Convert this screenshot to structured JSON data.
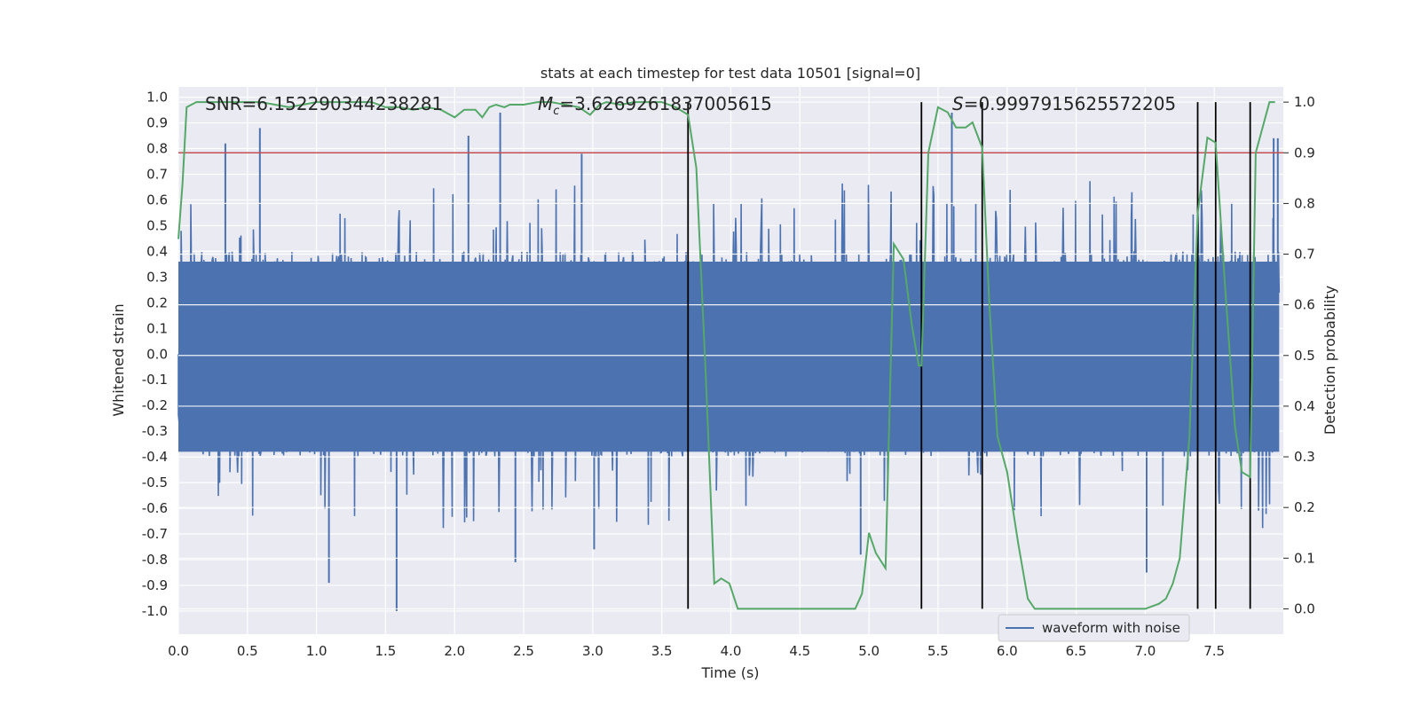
{
  "chart_data": {
    "type": "line",
    "title": "stats at each timestep for test data 10501 [signal=0]",
    "xlabel": "Time (s)",
    "ylabel_left": "Whitened strain",
    "ylabel_right": "Detection probability",
    "xlim": [
      0.0,
      8.0
    ],
    "ylim_left": [
      -1.09,
      1.04
    ],
    "ylim_right": [
      -0.05,
      1.03
    ],
    "x_ticks": [
      "0.0",
      "0.5",
      "1.0",
      "1.5",
      "2.0",
      "2.5",
      "3.0",
      "3.5",
      "4.0",
      "4.5",
      "5.0",
      "5.5",
      "6.0",
      "6.5",
      "7.0",
      "7.5"
    ],
    "y_ticks_left": [
      "1.0",
      "0.9",
      "0.8",
      "0.7",
      "0.6",
      "0.5",
      "0.4",
      "0.3",
      "0.2",
      "0.1",
      "0.0",
      "-0.1",
      "-0.2",
      "-0.3",
      "-0.4",
      "-0.5",
      "-0.6",
      "-0.7",
      "-0.8",
      "-0.9",
      "-1.0"
    ],
    "y_ticks_right": [
      "1.0",
      "0.9",
      "0.8",
      "0.7",
      "0.6",
      "0.5",
      "0.4",
      "0.3",
      "0.2",
      "0.1",
      "0.0"
    ],
    "annotations": {
      "snr": "SNR=6.152290344238281",
      "mc_symbol": "M",
      "mc_sub": "c",
      "mc_value": "=3.6269261837005615",
      "s_symbol": "S",
      "s_value": "=0.9997915625572205"
    },
    "legend": {
      "label": "waveform with noise",
      "position": "lower-right"
    },
    "grid": true,
    "colors": {
      "background": "#eaeaf2",
      "grid": "#ffffff",
      "waveform": "#4c72b0",
      "probability": "#55a868",
      "threshold": "#c44e52",
      "markers": "#000000"
    },
    "threshold_probability": 0.9,
    "vertical_markers_s": [
      3.69,
      5.38,
      5.82,
      7.38,
      7.51,
      7.76
    ],
    "waveform_envelope": {
      "typical_amplitude": 0.4,
      "positive_peaks": [
        {
          "x": 0.34,
          "y": 0.82
        },
        {
          "x": 0.59,
          "y": 0.88
        },
        {
          "x": 2.1,
          "y": 0.85
        },
        {
          "x": 2.33,
          "y": 0.94
        },
        {
          "x": 2.92,
          "y": 0.78
        },
        {
          "x": 5.6,
          "y": 0.94
        },
        {
          "x": 7.93,
          "y": 0.84
        },
        {
          "x": 7.96,
          "y": 0.84
        }
      ],
      "negative_peaks": [
        {
          "x": 1.09,
          "y": -0.89
        },
        {
          "x": 1.58,
          "y": -1.0
        },
        {
          "x": 2.44,
          "y": -0.81
        },
        {
          "x": 7.01,
          "y": -0.85
        },
        {
          "x": 4.94,
          "y": -0.78
        },
        {
          "x": 3.01,
          "y": -0.76
        }
      ]
    },
    "series": [
      {
        "name": "waveform with noise",
        "style": "dense-noise"
      },
      {
        "style": "line",
        "x": [
          0.0,
          0.03,
          0.06,
          0.13,
          0.2,
          0.3,
          0.4,
          0.5,
          0.6,
          0.7,
          0.8,
          0.9,
          1.0,
          1.1,
          1.2,
          1.3,
          1.4,
          1.5,
          1.6,
          1.7,
          1.8,
          1.9,
          2.0,
          2.07,
          2.15,
          2.2,
          2.25,
          2.3,
          2.36,
          2.4,
          2.5,
          2.6,
          2.7,
          2.8,
          2.9,
          2.98,
          3.05,
          3.1,
          3.2,
          3.3,
          3.4,
          3.5,
          3.6,
          3.69,
          3.75,
          3.82,
          3.88,
          3.93,
          3.99,
          4.05,
          4.1,
          4.2,
          4.3,
          4.4,
          4.5,
          4.6,
          4.7,
          4.8,
          4.9,
          4.95,
          5.0,
          5.05,
          5.12,
          5.18,
          5.25,
          5.31,
          5.36,
          5.38,
          5.43,
          5.5,
          5.57,
          5.63,
          5.7,
          5.75,
          5.82,
          5.87,
          5.93,
          6.0,
          6.08,
          6.15,
          6.2,
          6.3,
          6.4,
          6.5,
          6.6,
          6.7,
          6.8,
          6.9,
          7.0,
          7.1,
          7.15,
          7.2,
          7.25,
          7.32,
          7.38,
          7.45,
          7.51,
          7.58,
          7.65,
          7.7,
          7.76,
          7.8,
          7.86,
          7.9,
          7.94
        ],
        "y": [
          0.73,
          0.84,
          0.99,
          1.0,
          1.0,
          1.0,
          1.0,
          1.0,
          1.0,
          0.995,
          0.99,
          0.995,
          1.0,
          1.0,
          1.0,
          1.0,
          1.0,
          0.99,
          0.99,
          0.985,
          0.99,
          0.985,
          0.97,
          0.985,
          0.985,
          0.97,
          0.99,
          0.995,
          0.99,
          0.995,
          0.995,
          1.0,
          1.0,
          0.995,
          0.99,
          0.975,
          0.995,
          1.0,
          0.995,
          1.0,
          1.0,
          1.0,
          0.99,
          0.975,
          0.87,
          0.45,
          0.05,
          0.06,
          0.05,
          0.0,
          0.0,
          0.0,
          0.0,
          0.0,
          0.0,
          0.0,
          0.0,
          0.0,
          0.0,
          0.03,
          0.15,
          0.11,
          0.08,
          0.72,
          0.69,
          0.56,
          0.48,
          0.48,
          0.9,
          0.99,
          0.98,
          0.95,
          0.95,
          0.96,
          0.91,
          0.61,
          0.34,
          0.27,
          0.13,
          0.02,
          0.0,
          0.0,
          0.0,
          0.0,
          0.0,
          0.0,
          0.0,
          0.0,
          0.0,
          0.01,
          0.02,
          0.05,
          0.1,
          0.34,
          0.78,
          0.93,
          0.92,
          0.63,
          0.36,
          0.27,
          0.26,
          0.9,
          0.96,
          1.0,
          1.0
        ]
      }
    ]
  }
}
